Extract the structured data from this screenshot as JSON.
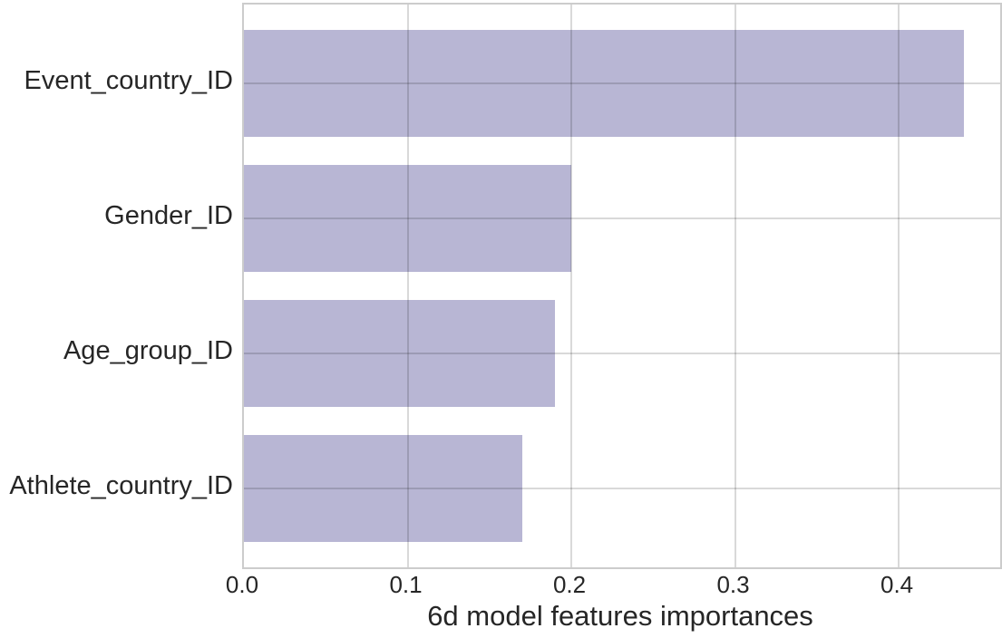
{
  "chart_data": {
    "type": "bar",
    "orientation": "horizontal",
    "xlabel": "6d model features importances",
    "categories": [
      "Event_country_ID",
      "Gender_ID",
      "Age_group_ID",
      "Athlete_country_ID"
    ],
    "values": [
      0.44,
      0.2,
      0.19,
      0.17
    ],
    "xlim": [
      0.0,
      0.462
    ],
    "x_ticks": [
      {
        "value": 0.0,
        "label": "0.0"
      },
      {
        "value": 0.1,
        "label": "0.1"
      },
      {
        "value": 0.2,
        "label": "0.2"
      },
      {
        "value": 0.3,
        "label": "0.3"
      },
      {
        "value": 0.4,
        "label": "0.4"
      }
    ],
    "grid": true,
    "legend": false,
    "colors": {
      "bar": "#b8b6d4",
      "grid": "#d9d9d9",
      "spine": "#cccccc",
      "text": "#262626"
    }
  }
}
